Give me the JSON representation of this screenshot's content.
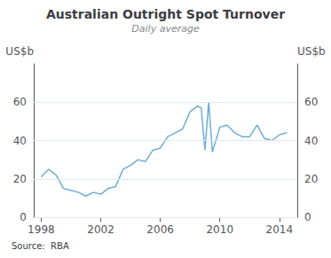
{
  "chart_data": {
    "type": "line",
    "title": "Australian Outright Spot Turnover",
    "subtitle": "Daily average",
    "ylabel": "US$b",
    "y2label": "US$b",
    "annotations": [
      "Source:  RBA"
    ],
    "x": [
      1998.0,
      1998.5,
      1999.0,
      1999.5,
      2000.0,
      2000.5,
      2001.0,
      2001.5,
      2002.0,
      2002.5,
      2003.0,
      2003.5,
      2004.0,
      2004.5,
      2005.0,
      2005.5,
      2006.0,
      2006.5,
      2007.0,
      2007.5,
      2008.0,
      2008.5,
      2008.75,
      2009.0,
      2009.25,
      2009.5,
      2010.0,
      2010.5,
      2011.0,
      2011.5,
      2012.0,
      2012.5,
      2013.0,
      2013.5,
      2014.0,
      2014.5
    ],
    "values": [
      21,
      25,
      22,
      15,
      14,
      13,
      11,
      13,
      12,
      15,
      16,
      25,
      27,
      30,
      29,
      35,
      36,
      42,
      44,
      46,
      55,
      58,
      57,
      35,
      60,
      34,
      47,
      48,
      44,
      42,
      42,
      48,
      41,
      40,
      43,
      44
    ],
    "color": "#6baed6",
    "xlim": [
      1997.5,
      2015.2
    ],
    "xticks": [
      1998,
      2002,
      2006,
      2010,
      2014
    ],
    "ylim": [
      0,
      80
    ],
    "yticks": [
      0,
      20,
      40,
      60
    ],
    "y2lim": [
      0,
      80
    ],
    "y2ticks": [
      0,
      20,
      40,
      60
    ],
    "grid": true
  }
}
